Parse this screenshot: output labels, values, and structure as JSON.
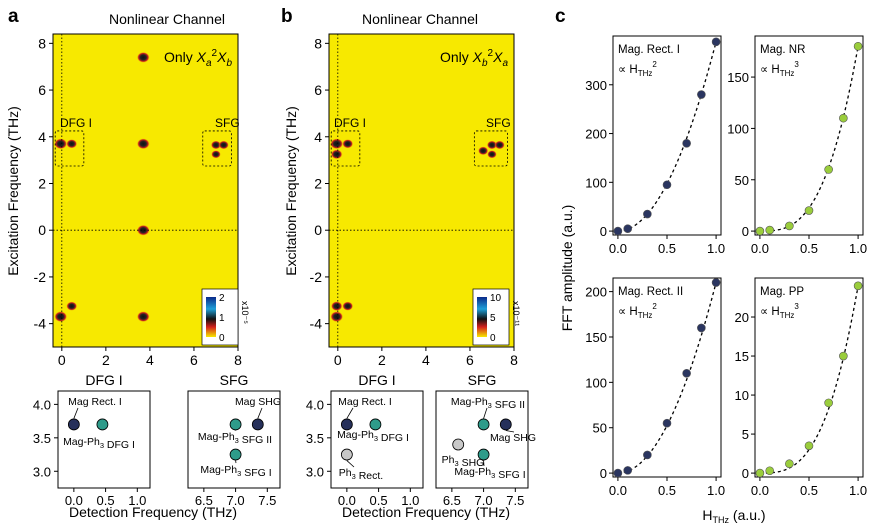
{
  "panel_letters": {
    "a": "a",
    "b": "b",
    "c": "c"
  },
  "chart_data": [
    {
      "type": "heatmap",
      "panel": "a",
      "title": "Nonlinear Channel",
      "annotation": "Only Xa²Xb",
      "xlabel": "",
      "ylabel": "Excitation Frequency (THz)",
      "xlim": [
        -0.4,
        8
      ],
      "ylim": [
        -5,
        8.4
      ],
      "xticks": [
        "0",
        "2",
        "4",
        "6",
        "8"
      ],
      "yticks": [
        "-4",
        "-2",
        "0",
        "2",
        "4",
        "6",
        "8"
      ],
      "colorbar": {
        "ticks": [
          "2",
          "1",
          "0"
        ],
        "unit": "x10⁻⁵"
      },
      "boxes": [
        {
          "label": "DFG I"
        },
        {
          "label": "SFG"
        }
      ],
      "peaks": [
        {
          "x": 3.7,
          "y": 7.4,
          "s": 1
        },
        {
          "x": -0.05,
          "y": 3.7,
          "s": 1
        },
        {
          "x": 0.45,
          "y": 3.7,
          "s": 0.85
        },
        {
          "x": 3.7,
          "y": 3.7,
          "s": 1
        },
        {
          "x": 7.0,
          "y": 3.65,
          "s": 0.8
        },
        {
          "x": 7.35,
          "y": 3.65,
          "s": 0.8
        },
        {
          "x": 7.0,
          "y": 3.25,
          "s": 0.75
        },
        {
          "x": 3.7,
          "y": 0.0,
          "s": 1
        },
        {
          "x": -0.05,
          "y": -3.7,
          "s": 1
        },
        {
          "x": 0.45,
          "y": -3.25,
          "s": 0.85
        },
        {
          "x": 3.7,
          "y": -3.7,
          "s": 1
        }
      ]
    },
    {
      "type": "heatmap",
      "panel": "b",
      "title": "Nonlinear Channel",
      "annotation": "Only Xb²Xa",
      "xlabel": "",
      "ylabel": "Excitation Frequency (THz)",
      "xlim": [
        -0.4,
        8
      ],
      "ylim": [
        -5,
        8.4
      ],
      "xticks": [
        "0",
        "2",
        "4",
        "6",
        "8"
      ],
      "yticks": [
        "-4",
        "-2",
        "0",
        "2",
        "4",
        "6",
        "8"
      ],
      "colorbar": {
        "ticks": [
          "10",
          "5",
          "0"
        ],
        "unit": "x10⁻¹¹"
      },
      "boxes": [
        {
          "label": "DFG I"
        },
        {
          "label": "SFG"
        }
      ],
      "peaks": [
        {
          "x": -0.05,
          "y": 3.7,
          "s": 1
        },
        {
          "x": 0.45,
          "y": 3.7,
          "s": 0.85
        },
        {
          "x": -0.05,
          "y": 3.25,
          "s": 0.9
        },
        {
          "x": 6.6,
          "y": 3.4,
          "s": 0.8
        },
        {
          "x": 7.0,
          "y": 3.65,
          "s": 0.8
        },
        {
          "x": 7.35,
          "y": 3.65,
          "s": 0.8
        },
        {
          "x": 7.0,
          "y": 3.25,
          "s": 0.75
        },
        {
          "x": -0.05,
          "y": -3.7,
          "s": 1
        },
        {
          "x": 0.45,
          "y": -3.25,
          "s": 0.85
        },
        {
          "x": -0.05,
          "y": -3.25,
          "s": 0.9
        }
      ]
    },
    {
      "type": "scatter",
      "panel": "a-inset",
      "xlabel": "Detection Frequency (THz)",
      "groups": [
        {
          "title": "DFG I",
          "xticks": [
            "0.0",
            "0.5",
            "1.0"
          ],
          "xlim": [
            -0.25,
            1.2
          ],
          "ylim": [
            2.75,
            4.2
          ],
          "yticks": [
            "4.0",
            "3.5",
            "3.0"
          ],
          "points": [
            {
              "x": 0.0,
              "y": 3.7,
              "c": "dark",
              "label": "Mag Rect. I"
            },
            {
              "x": 0.45,
              "y": 3.7,
              "c": "teal",
              "label": "Mag-Ph3 DFG I"
            }
          ]
        },
        {
          "title": "SFG",
          "xticks": [
            "6.5",
            "7.0",
            "7.5"
          ],
          "xlim": [
            6.25,
            7.7
          ],
          "ylim": [
            2.75,
            4.2
          ],
          "points": [
            {
              "x": 7.35,
              "y": 3.7,
              "c": "dark",
              "label": "Mag SHG"
            },
            {
              "x": 7.0,
              "y": 3.7,
              "c": "teal",
              "label": "Mag-Ph3 SFG II"
            },
            {
              "x": 7.0,
              "y": 3.25,
              "c": "teal",
              "label": "Mag-Ph3 SFG I"
            }
          ]
        }
      ]
    },
    {
      "type": "scatter",
      "panel": "b-inset",
      "xlabel": "Detection Frequency (THz)",
      "groups": [
        {
          "title": "DFG I",
          "xticks": [
            "0.0",
            "0.5",
            "1.0"
          ],
          "xlim": [
            -0.25,
            1.2
          ],
          "ylim": [
            2.75,
            4.2
          ],
          "yticks": [
            "4.0",
            "3.5",
            "3.0"
          ],
          "points": [
            {
              "x": 0.0,
              "y": 3.7,
              "c": "dark",
              "label": "Mag Rect. I"
            },
            {
              "x": 0.45,
              "y": 3.7,
              "c": "teal",
              "label": "Mag-Ph3 DFG I"
            },
            {
              "x": 0.0,
              "y": 3.25,
              "c": "gray",
              "label": "Ph3 Rect."
            }
          ]
        },
        {
          "title": "SFG",
          "xticks": [
            "6.5",
            "7.0",
            "7.5"
          ],
          "xlim": [
            6.25,
            7.7
          ],
          "ylim": [
            2.75,
            4.2
          ],
          "points": [
            {
              "x": 7.0,
              "y": 3.7,
              "c": "teal",
              "label": "Mag-Ph3 SFG II"
            },
            {
              "x": 7.35,
              "y": 3.7,
              "c": "dark",
              "label": "Mag SHG"
            },
            {
              "x": 6.6,
              "y": 3.4,
              "c": "gray",
              "label": "Ph3 SHG"
            },
            {
              "x": 7.0,
              "y": 3.25,
              "c": "teal",
              "label": "Mag-Ph3 SFG I"
            }
          ]
        }
      ]
    },
    {
      "type": "scatter",
      "panel": "c",
      "xlabel": "HTHz (a.u.)",
      "ylabel": "FFT amplitude (a.u.)",
      "subplots": [
        {
          "name": "Mag. Rect. I",
          "power": "2",
          "color": "#2a3560",
          "ylim": [
            0,
            400
          ],
          "yticks": [
            0,
            100,
            200,
            300
          ],
          "x": [
            0,
            0.1,
            0.3,
            0.5,
            0.7,
            0.85,
            1.0
          ],
          "y": [
            0,
            5,
            35,
            95,
            180,
            280,
            388
          ]
        },
        {
          "name": "Mag. NR",
          "power": "3",
          "color": "#9acd3c",
          "ylim": [
            0,
            190
          ],
          "yticks": [
            0,
            50,
            100,
            150
          ],
          "x": [
            0,
            0.1,
            0.3,
            0.5,
            0.7,
            0.85,
            1.0
          ],
          "y": [
            0,
            1,
            5,
            20,
            60,
            110,
            180
          ]
        },
        {
          "name": "Mag. Rect. II",
          "power": "2",
          "color": "#2a3560",
          "ylim": [
            0,
            215
          ],
          "yticks": [
            0,
            50,
            100,
            150,
            200
          ],
          "x": [
            0,
            0.1,
            0.3,
            0.5,
            0.7,
            0.85,
            1.0
          ],
          "y": [
            0,
            3,
            20,
            55,
            110,
            160,
            210
          ]
        },
        {
          "name": "Mag. PP",
          "power": "3",
          "color": "#9acd3c",
          "ylim": [
            0,
            25
          ],
          "yticks": [
            0,
            5,
            10,
            15,
            20
          ],
          "x": [
            0,
            0.1,
            0.3,
            0.5,
            0.7,
            0.85,
            1.0
          ],
          "y": [
            0,
            0.3,
            1.2,
            3.5,
            9,
            15,
            24
          ]
        }
      ],
      "xticks": [
        "0.0",
        "0.5",
        "1.0"
      ]
    }
  ],
  "colors": {
    "yellow": "#f7e900",
    "dark": "#26305a",
    "teal": "#2e9b8a",
    "gray": "#c8c8c8",
    "green": "#9acd3c"
  }
}
